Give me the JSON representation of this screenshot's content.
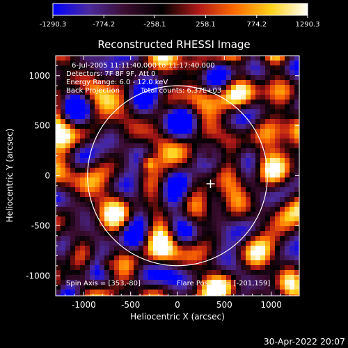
{
  "chart_data": {
    "type": "heatmap",
    "title": "Reconstructed RHESSI Image",
    "xlabel": "Heliocentric X (arcsec)",
    "ylabel": "Heliocentric Y (arcsec)",
    "xlim": [
      -1300,
      1300
    ],
    "ylim": [
      -1200,
      1200
    ],
    "x_ticks": [
      -1000,
      -500,
      0,
      500,
      1000
    ],
    "y_ticks": [
      -1000,
      -500,
      0,
      500,
      1000
    ],
    "colorbar": {
      "min": -1290.3,
      "max": 1290.3,
      "ticks": [
        "-1290.3",
        "-774.2",
        "-258.1",
        "258.1",
        "774.2",
        "1290.3"
      ],
      "colors": [
        "#0000ff",
        "#4b2a9c",
        "#3a0c2e",
        "#000000",
        "#b01818",
        "#ff6a00",
        "#ffd21a",
        "#ffffff"
      ]
    },
    "annotations": [
      "6-Jul-2005 11:11:40.000 to 11:17:40.000",
      "Detectors: 7F 8F 9F, Att 0",
      "Energy Range: 6.0 - 12.0 keV",
      "Back Projection",
      "Total counts: 6.37E+03"
    ],
    "spin_axis_label": "Spin Axis = [353,-80]",
    "flare_position_label": "Flare Position = [-201,159]",
    "spin_axis": [
      353,
      -80
    ],
    "solar_disk": {
      "center": [
        0,
        0
      ],
      "radius": 960
    },
    "bright_sources": [
      {
        "x": -310,
        "y": 130,
        "value": 1290
      },
      {
        "x": -760,
        "y": -890,
        "value": 950
      },
      {
        "x": 330,
        "y": 200,
        "value": 800
      }
    ]
  },
  "timestamp": "30-Apr-2022 20:07"
}
